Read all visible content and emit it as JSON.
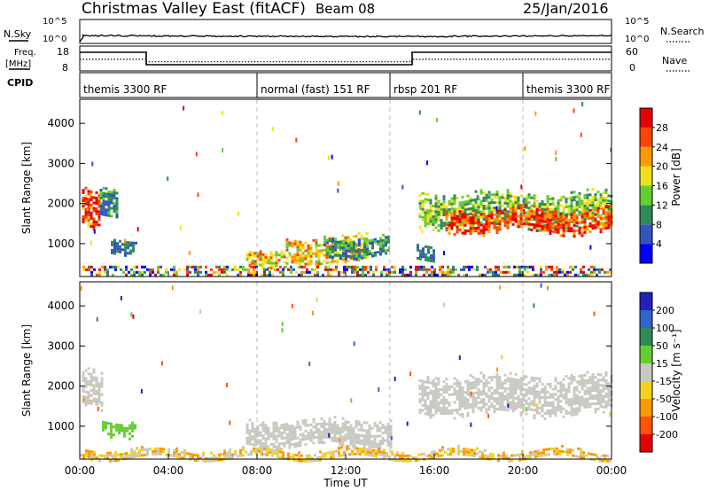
{
  "header": {
    "title": "Christmas Valley East (fitACF)",
    "beam": "Beam 08",
    "date": "25/Jan/2016"
  },
  "sky_panel": {
    "left_label": "N.Sky",
    "left_ticks": [
      "10^5",
      "10^0"
    ],
    "right_ticks": [
      "10^5",
      "10^0"
    ],
    "right_label": "N.Search"
  },
  "freq_panel": {
    "left_label_1": "Freq.",
    "left_label_2": "[MHz]",
    "left_ticks": [
      "18",
      "8"
    ],
    "right_ticks": [
      "60",
      "0"
    ],
    "right_label": "Nave",
    "freq_steps": [
      [
        0.0,
        15.5
      ],
      [
        0.2,
        15.5
      ],
      [
        3.0,
        15.5
      ],
      [
        3.0,
        10.5
      ],
      [
        15.0,
        10.5
      ],
      [
        15.0,
        15.5
      ],
      [
        24.0,
        15.5
      ]
    ],
    "nave_steps": [
      [
        0.0,
        28
      ],
      [
        3.0,
        28
      ],
      [
        3.0,
        22
      ],
      [
        15.0,
        22
      ],
      [
        15.0,
        28
      ],
      [
        24.0,
        28
      ]
    ],
    "freq_range": [
      8,
      18
    ],
    "nave_range": [
      0,
      60
    ]
  },
  "cpid": {
    "label": "CPID",
    "segments": [
      {
        "start": 0,
        "end": 8,
        "label": "themis 3300 RF"
      },
      {
        "start": 8,
        "end": 14,
        "label": "normal (fast) 151 RF"
      },
      {
        "start": 14,
        "end": 20,
        "label": "rbsp 201 RF"
      },
      {
        "start": 20,
        "end": 24,
        "label": "themis 3300 RF"
      }
    ]
  },
  "axes": {
    "ylabel": "Slant Range [km]",
    "xlabel": "Time UT",
    "x_ticks": [
      "00:00",
      "04:00",
      "08:00",
      "12:00",
      "16:00",
      "20:00",
      "00:00"
    ],
    "x_range_hours": [
      0,
      24
    ],
    "y_ticks": [
      "1000",
      "2000",
      "3000",
      "4000"
    ],
    "y_range_km": [
      180,
      4600
    ]
  },
  "power_colorbar": {
    "label": "Power [dB]",
    "ticks": [
      "4",
      "8",
      "12",
      "16",
      "20",
      "24",
      "28"
    ],
    "colors": [
      "#0000ff",
      "#3355bb",
      "#2e8b57",
      "#66cc33",
      "#f2e01e",
      "#ff9900",
      "#ff4400",
      "#e60000"
    ]
  },
  "velocity_colorbar": {
    "label": "Velocity [m s⁻¹]",
    "ticks": [
      "200",
      "100",
      "50",
      "15",
      "-15",
      "-50",
      "-100",
      "-200"
    ],
    "colors": [
      "#2222bb",
      "#3366cc",
      "#2e8b57",
      "#66cc33",
      "#c9c9c2",
      "#f2d21e",
      "#ff9900",
      "#ff5500",
      "#e60000"
    ]
  },
  "chart_data": {
    "type": "heatmap",
    "panels": [
      "power",
      "velocity"
    ],
    "x_range_hours": [
      0,
      24
    ],
    "y_range_km": [
      180,
      4600
    ],
    "ground_scatter_band": {
      "range_km": [
        200,
        450
      ]
    },
    "power_regions": [
      {
        "t": [
          0.1,
          0.9
        ],
        "r": [
          1400,
          2500
        ],
        "levels": [
          4,
          6,
          7
        ]
      },
      {
        "t": [
          0.9,
          1.7
        ],
        "r": [
          1700,
          2500
        ],
        "levels": [
          1,
          2,
          3
        ]
      },
      {
        "t": [
          1.4,
          2.5
        ],
        "r": [
          800,
          1200
        ],
        "levels": [
          1,
          2
        ]
      },
      {
        "t": [
          7.5,
          9.3
        ],
        "r": [
          500,
          900
        ],
        "levels": [
          3,
          4,
          6
        ]
      },
      {
        "t": [
          9.3,
          13.0
        ],
        "r": [
          500,
          1200
        ],
        "levels": [
          3,
          4,
          5,
          6
        ]
      },
      {
        "t": [
          11.0,
          14.0
        ],
        "r": [
          700,
          1200
        ],
        "levels": [
          1,
          2,
          3
        ]
      },
      {
        "t": [
          15.2,
          16.0
        ],
        "r": [
          600,
          1000
        ],
        "levels": [
          1,
          2
        ]
      },
      {
        "t": [
          15.3,
          24.0
        ],
        "r": [
          1400,
          2300
        ],
        "levels": [
          2,
          3,
          4
        ]
      },
      {
        "t": [
          16.5,
          24.0
        ],
        "r": [
          1300,
          1900
        ],
        "levels": [
          5,
          6,
          7
        ]
      }
    ],
    "velocity_regions": [
      {
        "t": [
          0.1,
          1.0
        ],
        "r": [
          1500,
          2500
        ],
        "levels": [
          4
        ]
      },
      {
        "t": [
          1.0,
          2.5
        ],
        "r": [
          800,
          1200
        ],
        "levels": [
          3
        ]
      },
      {
        "t": [
          7.5,
          14.0
        ],
        "r": [
          500,
          1200
        ],
        "levels": [
          4
        ]
      },
      {
        "t": [
          15.3,
          24.0
        ],
        "r": [
          1300,
          2300
        ],
        "levels": [
          4
        ]
      },
      {
        "t": [
          0.0,
          24.0
        ],
        "r": [
          200,
          450
        ],
        "levels": [
          4,
          5,
          6
        ]
      }
    ]
  }
}
